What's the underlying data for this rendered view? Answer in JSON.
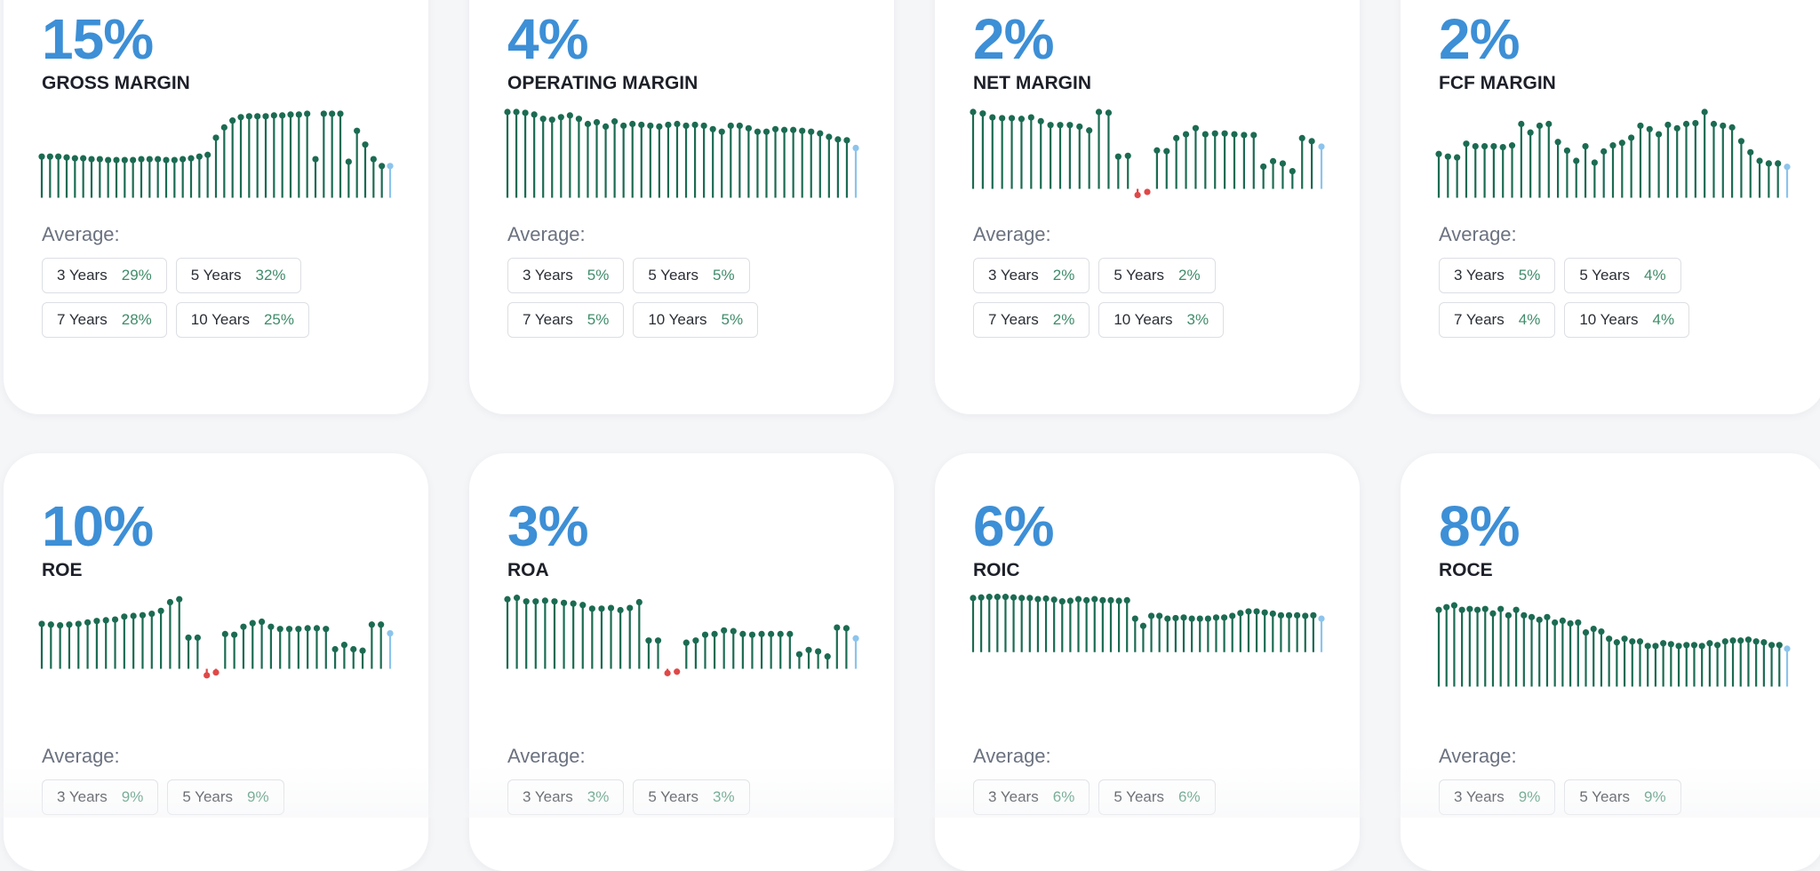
{
  "metrics": [
    {
      "value": "15%",
      "label": "GROSS MARGIN",
      "avg_label": "Average:",
      "chips": [
        {
          "period": "3 Years",
          "value": "29%"
        },
        {
          "period": "5 Years",
          "value": "32%"
        },
        {
          "period": "7 Years",
          "value": "28%"
        },
        {
          "period": "10 Years",
          "value": "25%"
        }
      ]
    },
    {
      "value": "4%",
      "label": "OPERATING MARGIN",
      "avg_label": "Average:",
      "chips": [
        {
          "period": "3 Years",
          "value": "5%"
        },
        {
          "period": "5 Years",
          "value": "5%"
        },
        {
          "period": "7 Years",
          "value": "5%"
        },
        {
          "period": "10 Years",
          "value": "5%"
        }
      ]
    },
    {
      "value": "2%",
      "label": "NET MARGIN",
      "avg_label": "Average:",
      "chips": [
        {
          "period": "3 Years",
          "value": "2%"
        },
        {
          "period": "5 Years",
          "value": "2%"
        },
        {
          "period": "7 Years",
          "value": "2%"
        },
        {
          "period": "10 Years",
          "value": "3%"
        }
      ]
    },
    {
      "value": "2%",
      "label": "FCF MARGIN",
      "avg_label": "Average:",
      "chips": [
        {
          "period": "3 Years",
          "value": "5%"
        },
        {
          "period": "5 Years",
          "value": "4%"
        },
        {
          "period": "7 Years",
          "value": "4%"
        },
        {
          "period": "10 Years",
          "value": "4%"
        }
      ]
    },
    {
      "value": "10%",
      "label": "ROE",
      "avg_label": "Average:",
      "chips": [
        {
          "period": "3 Years",
          "value": "9%"
        },
        {
          "period": "5 Years",
          "value": "9%"
        }
      ]
    },
    {
      "value": "3%",
      "label": "ROA",
      "avg_label": "Average:",
      "chips": [
        {
          "period": "3 Years",
          "value": "3%"
        },
        {
          "period": "5 Years",
          "value": "3%"
        }
      ]
    },
    {
      "value": "6%",
      "label": "ROIC",
      "avg_label": "Average:",
      "chips": [
        {
          "period": "3 Years",
          "value": "6%"
        },
        {
          "period": "5 Years",
          "value": "6%"
        }
      ]
    },
    {
      "value": "8%",
      "label": "ROCE",
      "avg_label": "Average:",
      "chips": [
        {
          "period": "3 Years",
          "value": "9%"
        },
        {
          "period": "5 Years",
          "value": "9%"
        }
      ]
    }
  ],
  "colors": {
    "positive": "#1b6b52",
    "negative": "#e04848",
    "latest": "#8cc4ec",
    "accent": "#3d8fd6",
    "chip_value": "#3f8c6a"
  },
  "chart_data": [
    {
      "type": "lollipop",
      "title": "GROSS MARGIN",
      "values": [
        0.48,
        0.48,
        0.48,
        0.47,
        0.46,
        0.46,
        0.45,
        0.45,
        0.44,
        0.44,
        0.44,
        0.44,
        0.45,
        0.45,
        0.45,
        0.44,
        0.44,
        0.45,
        0.46,
        0.48,
        0.5,
        0.7,
        0.82,
        0.9,
        0.94,
        0.95,
        0.95,
        0.95,
        0.96,
        0.96,
        0.97,
        0.97,
        0.98,
        0.45,
        0.98,
        0.98,
        0.98,
        0.42,
        0.78,
        0.62,
        0.45,
        0.37,
        0.37
      ]
    },
    {
      "type": "lollipop",
      "title": "OPERATING MARGIN",
      "values": [
        1.0,
        1.0,
        0.99,
        0.97,
        0.92,
        0.91,
        0.94,
        0.96,
        0.92,
        0.86,
        0.88,
        0.83,
        0.89,
        0.84,
        0.86,
        0.85,
        0.84,
        0.83,
        0.85,
        0.86,
        0.84,
        0.85,
        0.84,
        0.8,
        0.77,
        0.84,
        0.84,
        0.81,
        0.77,
        0.77,
        0.8,
        0.79,
        0.79,
        0.78,
        0.77,
        0.75,
        0.71,
        0.68,
        0.67,
        0.58
      ]
    },
    {
      "type": "lollipop",
      "title": "NET MARGIN",
      "values": [
        1.0,
        0.98,
        0.93,
        0.92,
        0.92,
        0.91,
        0.93,
        0.88,
        0.83,
        0.83,
        0.83,
        0.81,
        0.76,
        1.0,
        0.99,
        0.42,
        0.43,
        -0.08,
        -0.04,
        0.5,
        0.49,
        0.66,
        0.71,
        0.79,
        0.71,
        0.72,
        0.72,
        0.71,
        0.7,
        0.7,
        0.29,
        0.36,
        0.33,
        0.23,
        0.66,
        0.62,
        0.55
      ]
    },
    {
      "type": "lollipop",
      "title": "FCF MARGIN",
      "values": [
        0.51,
        0.48,
        0.47,
        0.63,
        0.6,
        0.6,
        0.6,
        0.59,
        0.61,
        0.86,
        0.76,
        0.84,
        0.86,
        0.65,
        0.55,
        0.43,
        0.6,
        0.41,
        0.54,
        0.61,
        0.64,
        0.7,
        0.84,
        0.8,
        0.74,
        0.85,
        0.81,
        0.86,
        0.87,
        1.0,
        0.86,
        0.84,
        0.82,
        0.66,
        0.53,
        0.43,
        0.4,
        0.4,
        0.36
      ]
    },
    {
      "type": "lollipop",
      "title": "ROE",
      "values": [
        0.62,
        0.61,
        0.6,
        0.61,
        0.62,
        0.64,
        0.66,
        0.67,
        0.68,
        0.72,
        0.73,
        0.74,
        0.76,
        0.8,
        0.92,
        0.96,
        0.43,
        0.43,
        -0.09,
        -0.05,
        0.48,
        0.47,
        0.58,
        0.63,
        0.65,
        0.58,
        0.55,
        0.55,
        0.55,
        0.56,
        0.56,
        0.55,
        0.27,
        0.33,
        0.27,
        0.25,
        0.61,
        0.61,
        0.49
      ]
    },
    {
      "type": "lollipop",
      "title": "ROA",
      "values": [
        0.96,
        0.98,
        0.93,
        0.93,
        0.94,
        0.93,
        0.91,
        0.9,
        0.88,
        0.83,
        0.83,
        0.84,
        0.81,
        0.84,
        0.92,
        0.39,
        0.39,
        -0.06,
        -0.04,
        0.36,
        0.39,
        0.47,
        0.48,
        0.53,
        0.52,
        0.48,
        0.47,
        0.48,
        0.48,
        0.48,
        0.48,
        0.2,
        0.26,
        0.24,
        0.17,
        0.57,
        0.56,
        0.42
      ]
    },
    {
      "type": "lollipop",
      "title": "ROIC",
      "values": [
        0.97,
        0.98,
        0.99,
        0.99,
        0.99,
        0.98,
        0.97,
        0.97,
        0.95,
        0.96,
        0.94,
        0.91,
        0.92,
        0.95,
        0.93,
        0.95,
        0.93,
        0.93,
        0.92,
        0.93,
        0.6,
        0.47,
        0.65,
        0.65,
        0.6,
        0.61,
        0.62,
        0.6,
        0.6,
        0.6,
        0.62,
        0.62,
        0.65,
        0.7,
        0.73,
        0.73,
        0.71,
        0.69,
        0.66,
        0.66,
        0.66,
        0.65,
        0.66,
        0.6
      ]
    },
    {
      "type": "lollipop",
      "title": "ROCE",
      "values": [
        0.85,
        0.88,
        0.9,
        0.85,
        0.86,
        0.85,
        0.86,
        0.81,
        0.86,
        0.79,
        0.85,
        0.79,
        0.77,
        0.74,
        0.77,
        0.71,
        0.73,
        0.7,
        0.71,
        0.6,
        0.64,
        0.61,
        0.53,
        0.49,
        0.53,
        0.5,
        0.5,
        0.45,
        0.45,
        0.48,
        0.47,
        0.45,
        0.46,
        0.46,
        0.45,
        0.48,
        0.46,
        0.5,
        0.51,
        0.51,
        0.52,
        0.5,
        0.49,
        0.46,
        0.46,
        0.42
      ]
    }
  ]
}
